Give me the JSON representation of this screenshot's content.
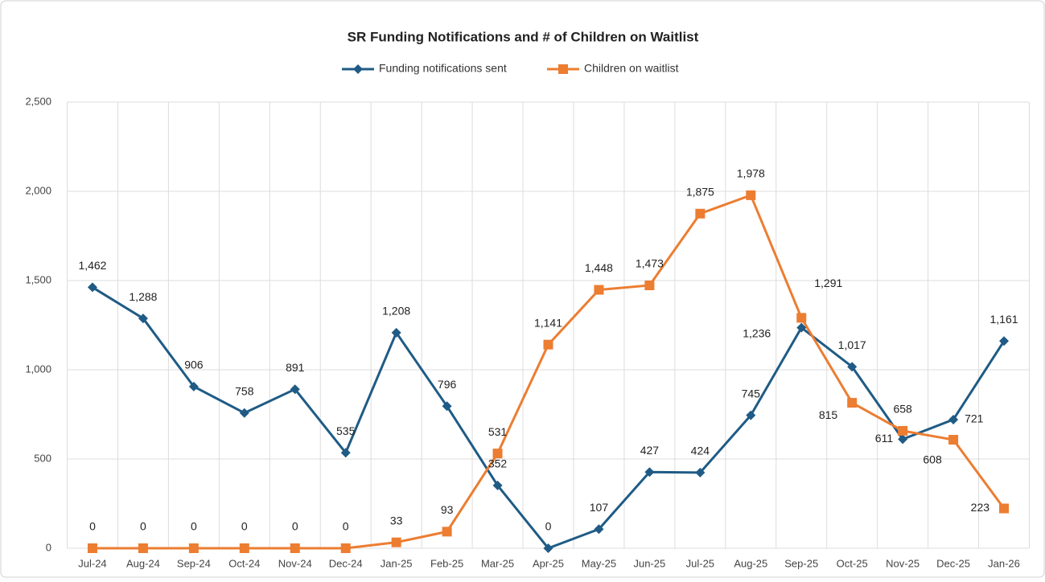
{
  "chart_data": {
    "type": "line",
    "title": "SR Funding Notifications and # of Children on Waitlist",
    "categories": [
      "Jul-24",
      "Aug-24",
      "Sep-24",
      "Oct-24",
      "Nov-24",
      "Dec-24",
      "Jan-25",
      "Feb-25",
      "Mar-25",
      "Apr-25",
      "May-25",
      "Jun-25",
      "Jul-25",
      "Aug-25",
      "Sep-25",
      "Oct-25",
      "Nov-25",
      "Dec-25",
      "Jan-26"
    ],
    "series": [
      {
        "name": "Funding notifications sent",
        "color": "#1f5b85",
        "marker": "diamond",
        "values": [
          1462,
          1288,
          906,
          758,
          891,
          535,
          1208,
          796,
          352,
          0,
          107,
          427,
          424,
          745,
          1236,
          1017,
          611,
          721,
          1161
        ],
        "value_labels": [
          "1,462",
          "1,288",
          "906",
          "758",
          "891",
          "535",
          "1,208",
          "796",
          "352",
          "0",
          "107",
          "427",
          "424",
          "745",
          "1,236",
          "1,017",
          "611",
          "721",
          "1,161"
        ]
      },
      {
        "name": "Children on waitlist",
        "color": "#ec7d31",
        "marker": "square",
        "values": [
          0,
          0,
          0,
          0,
          0,
          0,
          33,
          93,
          531,
          1141,
          1448,
          1473,
          1875,
          1978,
          1291,
          815,
          658,
          608,
          223
        ],
        "value_labels": [
          "0",
          "0",
          "0",
          "0",
          "0",
          "0",
          "33",
          "93",
          "531",
          "1,141",
          "1,448",
          "1,473",
          "1,875",
          "1,978",
          "1,291",
          "815",
          "658",
          "608",
          "223"
        ]
      }
    ],
    "ylim": [
      0,
      2500
    ],
    "yticks": [
      0,
      500,
      {
        "value": 1000,
        "label": "1,000"
      },
      {
        "value": 1500,
        "label": "1,500"
      },
      {
        "value": 2000,
        "label": "2,000"
      },
      {
        "value": 2500,
        "label": "2,500"
      }
    ],
    "grid": true,
    "legend": "top"
  }
}
